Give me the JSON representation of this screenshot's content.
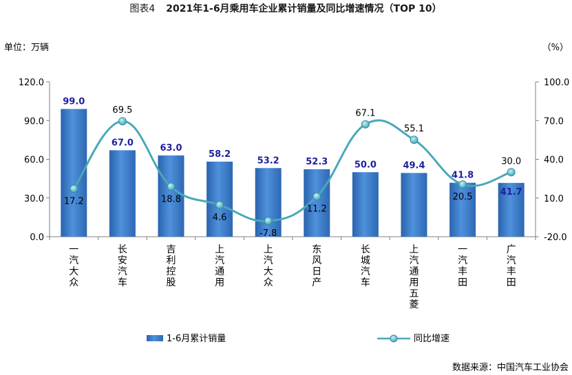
{
  "chart_data": {
    "type": "bar",
    "title": "图表4 2021年1-6月乘用车企业累计销量及同比增速情况（TOP 10）",
    "title_prefix": "图表4",
    "title_main": "2021年1-6月乘用车企业累计销量及同比增速情况（TOP 10）",
    "ylabel": "单位：万辆",
    "y2label": "（%）",
    "ylim": [
      0,
      120
    ],
    "yticks": [
      "0.0",
      "30.0",
      "60.0",
      "90.0",
      "120.0"
    ],
    "y2lim": [
      -20,
      100
    ],
    "y2ticks": [
      "-20.0",
      "10.0",
      "40.0",
      "70.0",
      "100.0"
    ],
    "categories": [
      "一汽大众",
      "长安汽车",
      "吉利控股",
      "上汽通用",
      "上汽大众",
      "东风日产",
      "长城汽车",
      "上汽通用五菱",
      "一汽丰田",
      "广汽丰田"
    ],
    "series": [
      {
        "name": "1-6月累计销量",
        "type": "bar",
        "axis": "left",
        "color": "#3b7dc8",
        "values": [
          99.0,
          67.0,
          63.0,
          58.2,
          53.2,
          52.3,
          50.0,
          49.4,
          41.8,
          41.7
        ],
        "labels": [
          "99.0",
          "67.0",
          "63.0",
          "58.2",
          "53.2",
          "52.3",
          "50.0",
          "49.4",
          "41.8",
          "41.7"
        ]
      },
      {
        "name": "同比增速",
        "type": "line",
        "axis": "right",
        "color": "#4aa8b8",
        "values": [
          17.2,
          69.5,
          18.8,
          4.6,
          -7.8,
          11.2,
          67.1,
          55.1,
          20.5,
          30.0
        ],
        "labels": [
          "17.2",
          "69.5",
          "18.8",
          "4.6",
          "-7.8",
          "11.2",
          "67.1",
          "55.1",
          "20.5",
          "30.0"
        ]
      }
    ],
    "legend_position": "bottom",
    "grid": false
  },
  "source": "数据来源：中国汽车工业协会"
}
